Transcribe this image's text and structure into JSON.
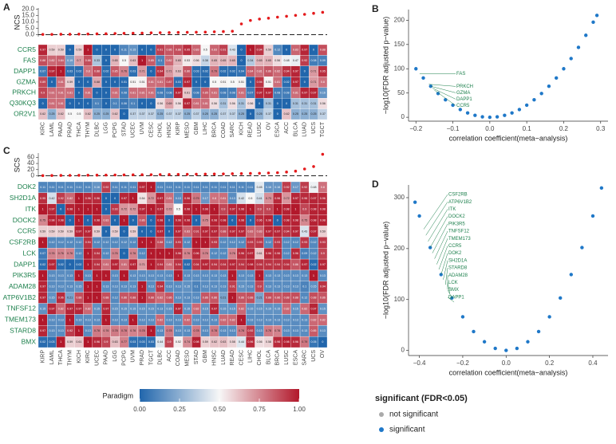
{
  "chart_data": [
    {
      "type": "dot",
      "panel": "A",
      "ylabel": "NCS",
      "color": "#e41a1c",
      "values": [
        0.3,
        0.3,
        0.4,
        0.4,
        0.5,
        0.6,
        0.7,
        0.8,
        1.0,
        1.1,
        1.2,
        1.3,
        1.5,
        1.6,
        1.7,
        1.8,
        1.9,
        2.0,
        2.1,
        2.3,
        2.5,
        2.8,
        8.5,
        11.2,
        12.3,
        13.0,
        13.8,
        14.5,
        15.2,
        16.0,
        16.8,
        17.6
      ],
      "ylim": [
        -1.5,
        21
      ],
      "hline": 0,
      "yticks": [
        {
          "value": 0,
          "label": "0.0"
        },
        {
          "value": 5,
          "label": "5.0"
        },
        {
          "value": 10,
          "label": "10.0"
        },
        {
          "value": 15,
          "label": "15.0"
        },
        {
          "value": 20,
          "label": "20.0"
        }
      ]
    },
    {
      "type": "heatmap",
      "rows": [
        "CCR5",
        "FAS",
        "DAPP1",
        "GZMA",
        "PRKCH",
        "Q30KQ3",
        "OR2V1"
      ],
      "columns": [
        "KIRC",
        "LAML",
        "PAAD",
        "PRAD",
        "THCA",
        "THYM",
        "DLBC",
        "LGG",
        "PCPG",
        "STAD",
        "UCEC",
        "UVM",
        "CESC",
        "CHOL",
        "HNSC",
        "KIRP",
        "MESO",
        "GBM",
        "LIHC",
        "BRCA",
        "COAD",
        "SARC",
        "KICH",
        "READ",
        "LUSC",
        "OV",
        "ESCA",
        "ACC",
        "BLCA",
        "LUAD",
        "UCS",
        "TGCT"
      ],
      "values": [
        [
          0.97,
          0.59,
          0.59,
          0,
          0.59,
          1,
          0,
          0,
          0,
          0.11,
          0.15,
          0,
          0,
          0.91,
          0.86,
          0.88,
          0.95,
          0.83,
          0.5,
          0.83,
          0.91,
          0.43,
          0,
          1,
          0.94,
          0.59,
          0.12,
          0,
          0.83,
          0.97,
          0,
          0.88
        ],
        [
          0.88,
          0.82,
          0.84,
          0.19,
          0.7,
          0.88,
          0.33,
          0,
          0.65,
          0.5,
          0.63,
          1,
          0.85,
          0.1,
          0.82,
          0.65,
          0.53,
          0.56,
          0.38,
          0.65,
          0.65,
          0.65,
          0,
          0.34,
          0.65,
          0.65,
          0.56,
          0.48,
          0.47,
          0.92,
          0.08,
          0.09
        ],
        [
          0.07,
          0.97,
          1,
          0.03,
          0.02,
          0.8,
          0.88,
          0.02,
          0.85,
          0.76,
          0.03,
          0.71,
          0,
          0.94,
          0.71,
          0.63,
          0.86,
          0.03,
          0.02,
          0.79,
          0.02,
          0.02,
          0.04,
          0.84,
          0.81,
          0.86,
          0.82,
          0.94,
          0.97,
          0,
          0.71,
          0.95
        ],
        [
          0.89,
          0,
          0.81,
          0.59,
          0,
          0,
          0.68,
          0,
          0,
          0.01,
          0.51,
          0.51,
          0.81,
          0.81,
          0.87,
          0.03,
          0.97,
          0,
          0,
          0.5,
          0.51,
          0.5,
          0.51,
          0,
          0.94,
          0.51,
          0.81,
          0.02,
          0.97,
          0,
          0.71,
          0.8
        ],
        [
          0.9,
          0.81,
          0.81,
          0.81,
          0,
          0.81,
          0,
          0,
          0.81,
          0.08,
          0.81,
          0.81,
          0.81,
          0.08,
          0.08,
          0.97,
          0.61,
          0.08,
          0.85,
          0.81,
          0.08,
          0.08,
          0.81,
          0.07,
          0.97,
          0.97,
          0.08,
          0.08,
          0.81,
          0.97,
          0.97,
          0.16
        ],
        [
          0,
          0.81,
          0.81,
          0,
          0,
          0,
          0.1,
          0,
          0.1,
          0.06,
          0.1,
          0,
          0,
          0.56,
          0.69,
          0.56,
          0.97,
          0.81,
          0.81,
          0.56,
          0.31,
          0.56,
          0.31,
          0.56,
          0,
          0.31,
          0,
          0,
          0.31,
          0.31,
          0.31,
          0.56
        ],
        [
          0.62,
          0.25,
          0.62,
          0.5,
          0.5,
          0.62,
          0.25,
          0.25,
          0.62,
          0,
          0.37,
          0.37,
          0.37,
          0.25,
          0.37,
          0.37,
          0.25,
          0.37,
          0.25,
          0.25,
          0.37,
          0.37,
          0.25,
          0,
          0.25,
          0.37,
          0,
          0.62,
          0.25,
          0.25,
          0.25,
          0.37
        ]
      ]
    },
    {
      "type": "dot",
      "panel": "C",
      "ylabel": "SCS",
      "color": "#e41a1c",
      "values": [
        0.5,
        0.8,
        1,
        1.2,
        1.5,
        1.8,
        2,
        2.2,
        2.5,
        2.8,
        3,
        3.2,
        3.5,
        3.8,
        4,
        4.3,
        4.6,
        5,
        5.3,
        5.6,
        6,
        6.5,
        7,
        7.5,
        8,
        9,
        10,
        12,
        15,
        22,
        30,
        70
      ],
      "ylim": [
        -4,
        74
      ],
      "hline": 0,
      "yticks": [
        0,
        20,
        40,
        60
      ]
    },
    {
      "type": "heatmap",
      "rows": [
        "DOK2",
        "SH2D1A",
        "ITK",
        "DOCK2",
        "CCR5",
        "CSF2RB",
        "LCK",
        "DAPP1",
        "PIK3R5",
        "ADAM28",
        "ATP6V1B2",
        "TNFSF12",
        "TMEM173",
        "STARD8",
        "BMX"
      ],
      "columns": [
        "KIRP",
        "LAML",
        "THCA",
        "THYM",
        "KICH",
        "KIRC",
        "UCEC",
        "PAAD",
        "LGG",
        "PCPG",
        "UVM",
        "PRAD",
        "TGCT",
        "DLBC",
        "ACC",
        "COAD",
        "MESO",
        "STAD",
        "GBM",
        "HNSC",
        "LUAD",
        "READ",
        "CESC",
        "LIHC",
        "CHOL",
        "BLCA",
        "BRCA",
        "LUSC",
        "ESCA",
        "SARC",
        "UCS",
        "OV"
      ],
      "values": [
        [
          0.11,
          0.11,
          0.11,
          0.11,
          0.11,
          0.11,
          0.16,
          0.92,
          0.11,
          0.11,
          0.11,
          0.97,
          1,
          0.11,
          0.11,
          0.11,
          0.11,
          0.11,
          0.11,
          0.11,
          0.11,
          0.11,
          0.11,
          0.11,
          0.45,
          0.16,
          0.16,
          0.92,
          0.17,
          0.92,
          0.48,
          0.8
        ],
        [
          0.95,
          0.42,
          0.92,
          0.82,
          1,
          0.96,
          0.96,
          0,
          0,
          0.97,
          1,
          0.54,
          0.72,
          0.97,
          0.81,
          0.13,
          0.96,
          0.79,
          0.17,
          0.8,
          0.81,
          0.13,
          0.42,
          0.5,
          0.41,
          0.73,
          0.96,
          0.72,
          0.97,
          0.96,
          0.97,
          0.96
        ],
        [
          1,
          0.97,
          0,
          0.98,
          1,
          1,
          1,
          0,
          0.93,
          0.72,
          0.72,
          0.97,
          1,
          0.97,
          0.72,
          0.5,
          0.98,
          1,
          0.98,
          1,
          0.9,
          0.97,
          0.98,
          1,
          0.9,
          0.9,
          1,
          0.98,
          1,
          0.9,
          0.98,
          0.98
        ],
        [
          0.75,
          0.98,
          0.98,
          0,
          1,
          0,
          0.98,
          0.83,
          0,
          1,
          0,
          0.86,
          0,
          0.98,
          0,
          0.98,
          0.98,
          0,
          0.75,
          0.98,
          0.98,
          0,
          0.98,
          0,
          0.96,
          0.98,
          0,
          0.98,
          0.98,
          0.75,
          0.98,
          0.98
        ],
        [
          0.59,
          0.59,
          0.59,
          0.59,
          0.97,
          0.97,
          0.59,
          0,
          0.59,
          0,
          0.59,
          0,
          0,
          0.97,
          0,
          0.97,
          0.83,
          0.91,
          0.97,
          0.97,
          0.88,
          0.97,
          0.97,
          0.83,
          0.83,
          0.97,
          0.97,
          0.94,
          0.97,
          0.43,
          0.97,
          0.59
        ],
        [
          1,
          0.12,
          0.12,
          0.12,
          0.12,
          0.94,
          0.12,
          0.12,
          0.12,
          0.12,
          0.12,
          1,
          1,
          0.88,
          0.12,
          0.93,
          0.12,
          1,
          1,
          0.93,
          0.12,
          0.12,
          0.12,
          0.93,
          0.93,
          0.12,
          0.93,
          0.12,
          0.12,
          0.93,
          0.12,
          0.93
        ],
        [
          0.07,
          0.76,
          0.76,
          0.76,
          0.12,
          1,
          0.94,
          0.12,
          0.76,
          0,
          0.76,
          0.12,
          1,
          1,
          1,
          0.96,
          0.76,
          0.96,
          0.76,
          0.12,
          0.12,
          0.76,
          0.96,
          0.97,
          0.61,
          0.96,
          0.96,
          0.12,
          0.96,
          0.09,
          0.12,
          0.9
        ],
        [
          0.02,
          0.97,
          0.02,
          0,
          0.02,
          1,
          0.94,
          0.81,
          0.97,
          0.81,
          0.97,
          0.71,
          1,
          0.94,
          0.81,
          0.94,
          0.02,
          0.94,
          0.97,
          0.94,
          0.94,
          0.97,
          0.94,
          0.98,
          0.94,
          0.94,
          0.94,
          0.94,
          0.86,
          0.97,
          0.02,
          0.97
        ],
        [
          1,
          0.13,
          0.13,
          0.13,
          1,
          0.13,
          1,
          1,
          0.13,
          1,
          0.13,
          0.13,
          0.13,
          0.13,
          0.13,
          1,
          0.13,
          0.13,
          0.13,
          0.13,
          0.13,
          1,
          0.13,
          0.13,
          1,
          0.13,
          0.13,
          0.13,
          0.13,
          0.13,
          1,
          0.13
        ],
        [
          0.97,
          0.13,
          0.13,
          0.13,
          0.15,
          1,
          1,
          0.13,
          0.13,
          0.13,
          0.13,
          1,
          0.13,
          0.94,
          0.13,
          0.13,
          0.15,
          0.1,
          0.13,
          0.13,
          0.13,
          0.91,
          0.15,
          0.13,
          0.9,
          0.13,
          0.13,
          0.13,
          0.13,
          0.1,
          0.15,
          0.94
        ],
        [
          0.97,
          0.15,
          0.96,
          0.21,
          0.88,
          1,
          1,
          0.88,
          0.12,
          0.86,
          0.88,
          1,
          0.88,
          0.82,
          0.86,
          0.13,
          0.13,
          0.13,
          0.86,
          0.86,
          0.21,
          1,
          0.86,
          0.88,
          0.21,
          0.88,
          0.86,
          0.88,
          0.88,
          0.12,
          0.88,
          0.86
        ],
        [
          0.15,
          0.97,
          0.82,
          0.97,
          0.97,
          0.82,
          0.15,
          0.97,
          0.15,
          0.15,
          0.15,
          0.15,
          0.15,
          0.13,
          0.15,
          0.97,
          0.15,
          0.82,
          0.15,
          0.97,
          0.15,
          0.15,
          0.82,
          0.15,
          0.15,
          0.15,
          0.15,
          0.82,
          0.15,
          0.82,
          0.97,
          0.15
        ],
        [
          1,
          0.13,
          0.13,
          1,
          0.13,
          0.13,
          0.13,
          1,
          0.13,
          0.13,
          1,
          0.13,
          0.13,
          0.82,
          0.13,
          0.13,
          0.82,
          0.13,
          0.13,
          0.13,
          0.82,
          0.82,
          1,
          0.13,
          0.13,
          0.13,
          0.13,
          0.13,
          0.13,
          0.13,
          0.82,
          0.82
        ],
        [
          0.97,
          0.13,
          0.13,
          0.92,
          1,
          0.13,
          0.78,
          0.76,
          0.78,
          0.78,
          0.76,
          0.78,
          1,
          0.13,
          0.78,
          0.13,
          0.13,
          0.78,
          0.13,
          0.78,
          0.13,
          0.13,
          0.78,
          0.92,
          0.13,
          0.78,
          0.76,
          0.13,
          0.13,
          0.13,
          0.85,
          0.13
        ],
        [
          0.02,
          0.03,
          1,
          0.59,
          0.61,
          1,
          0.96,
          0.9,
          0.63,
          0.77,
          0.03,
          0.03,
          0.03,
          0.44,
          0.9,
          0.52,
          0.74,
          0.98,
          0.59,
          0.62,
          0.63,
          0.58,
          0.44,
          0.96,
          0.56,
          0.58,
          0.96,
          0.98,
          0.96,
          0.79,
          0.05,
          0
        ]
      ]
    },
    {
      "type": "scatter",
      "panel": "B",
      "color": "#1f78c8",
      "xlabel": "correlation coefficient(meta−analysis)",
      "ylabel": "−log10(FDR adjusted p−value)",
      "x": [
        -0.2,
        -0.18,
        -0.16,
        -0.14,
        -0.12,
        -0.1,
        -0.08,
        -0.06,
        -0.04,
        -0.02,
        0,
        0.02,
        0.04,
        0.06,
        0.08,
        0.1,
        0.12,
        0.14,
        0.16,
        0.18,
        0.2,
        0.22,
        0.24,
        0.26,
        0.28,
        0.29
      ],
      "values": [
        100,
        81,
        64,
        49,
        36,
        25,
        16,
        9,
        4,
        1,
        0,
        1,
        4,
        9,
        16,
        25,
        36,
        49,
        64,
        81,
        100,
        121,
        144,
        169,
        196,
        210
      ],
      "xlim": [
        -0.22,
        0.32
      ],
      "ylim": [
        -8,
        222
      ],
      "xticks": [
        {
          "value": -0.2,
          "label": "−0.2"
        },
        {
          "value": -0.1,
          "label": "−0.1"
        },
        {
          "value": 0,
          "label": "0.0"
        },
        0.1,
        0.2,
        0.3
      ],
      "yticks": [
        0,
        50,
        100,
        150,
        200
      ],
      "annotations": [
        {
          "text": "FAS",
          "x": -0.19,
          "y": 90
        },
        {
          "text": "PRKCH",
          "x": -0.165,
          "y": 68
        },
        {
          "text": "GZMA",
          "x": -0.16,
          "y": 64
        },
        {
          "text": "DAPP1",
          "x": -0.155,
          "y": 60
        },
        {
          "text": "CCR5",
          "x": -0.15,
          "y": 56
        }
      ]
    },
    {
      "type": "scatter",
      "panel": "D",
      "color": "#1f78c8",
      "xlabel": "correlation coefficient(meta−analysis)",
      "ylabel": "−log10(FDR adjusted p−value)",
      "x": [
        -0.42,
        -0.4,
        -0.35,
        -0.3,
        -0.25,
        -0.2,
        -0.15,
        -0.1,
        -0.05,
        0,
        0.05,
        0.1,
        0.15,
        0.2,
        0.25,
        0.3,
        0.35,
        0.4,
        0.44
      ],
      "values": [
        291,
        264,
        202,
        149,
        103,
        66,
        37,
        17,
        4,
        0,
        4,
        17,
        37,
        66,
        103,
        149,
        202,
        264,
        319
      ],
      "xlim": [
        -0.45,
        0.47
      ],
      "ylim": [
        -10,
        325
      ],
      "xticks": [
        {
          "value": -0.4,
          "label": "−0.4"
        },
        {
          "value": -0.2,
          "label": "−0.2"
        },
        {
          "value": 0,
          "label": "0.0"
        },
        0.2,
        0.4
      ],
      "yticks": [
        0,
        100,
        200,
        300
      ],
      "annotations": [
        {
          "text": "CSF2RB",
          "x": -0.38,
          "y": 238
        },
        {
          "text": "ATP6V1B2",
          "x": -0.37,
          "y": 226
        },
        {
          "text": "ITK",
          "x": -0.36,
          "y": 214
        },
        {
          "text": "DOCK2",
          "x": -0.35,
          "y": 202
        },
        {
          "text": "PIK3R5",
          "x": -0.34,
          "y": 191
        },
        {
          "text": "TNFSF12",
          "x": -0.33,
          "y": 180
        },
        {
          "text": "TMEM173",
          "x": -0.32,
          "y": 169
        },
        {
          "text": "CCR5",
          "x": -0.31,
          "y": 159
        },
        {
          "text": "DOK2",
          "x": -0.3,
          "y": 149
        },
        {
          "text": "SH2D1A",
          "x": -0.29,
          "y": 139
        },
        {
          "text": "STARD8",
          "x": -0.28,
          "y": 129
        },
        {
          "text": "ADAM28",
          "x": -0.27,
          "y": 120
        },
        {
          "text": "LCK",
          "x": -0.26,
          "y": 112
        },
        {
          "text": "BMX",
          "x": -0.25,
          "y": 103
        },
        {
          "text": "DAPP1",
          "x": -0.24,
          "y": 95
        }
      ]
    }
  ],
  "colorbar": {
    "title": "Paradigm",
    "lim": [
      0,
      1
    ],
    "colors": [
      "#2166ac",
      "#f7f7f7",
      "#b2182b"
    ],
    "ticks": [
      {
        "value": 0,
        "label": "0.00"
      },
      {
        "value": 0.25,
        "label": "0.25"
      },
      {
        "value": 0.5,
        "label": "0.50"
      },
      {
        "value": 0.75,
        "label": "0.75"
      },
      {
        "value": 1,
        "label": "1.00"
      }
    ]
  },
  "legend": {
    "title": "significant (FDR<0.05)",
    "items": [
      {
        "name": "not significant",
        "color": "#aaaaaa"
      },
      {
        "name": "significant",
        "color": "#1f78c8"
      }
    ]
  }
}
